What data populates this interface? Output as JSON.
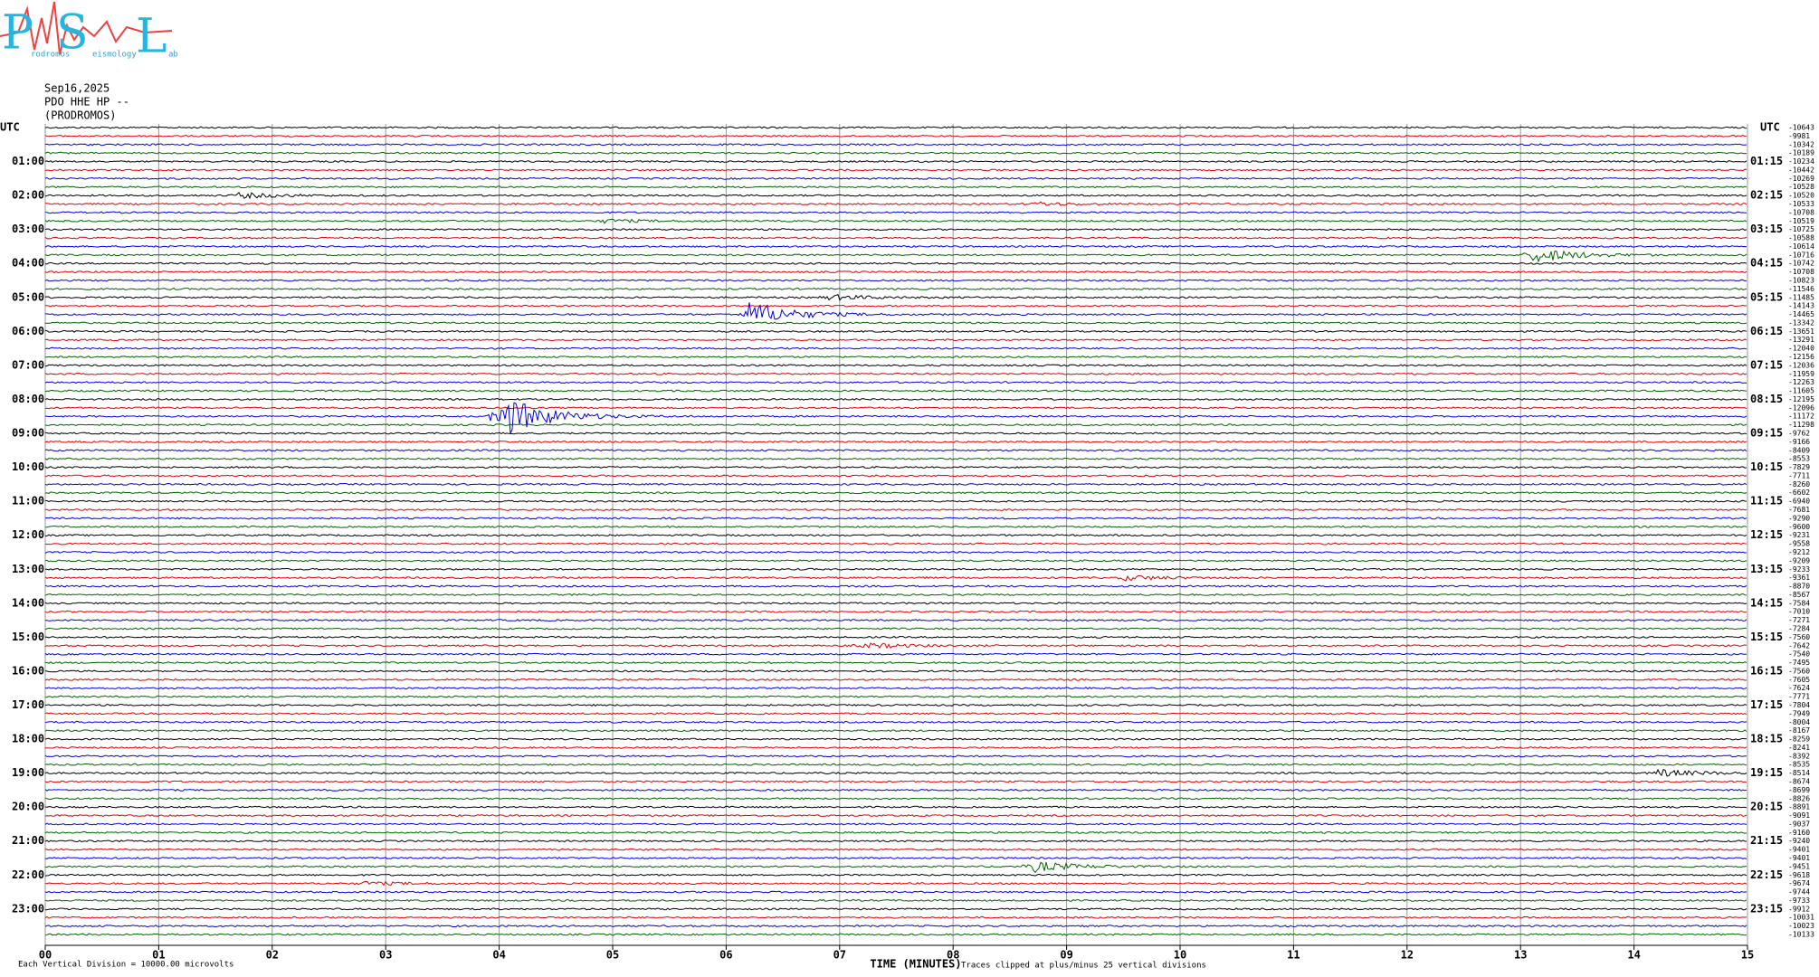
{
  "logo": {
    "letters": [
      "P",
      "S",
      "L"
    ],
    "words": [
      "rodromos",
      "eismology",
      "ab"
    ]
  },
  "header": {
    "date": "Sep16,2025",
    "channel": "PDO HHE HP --",
    "station": "(PRODROMOS)"
  },
  "left_labels": [
    "UTC",
    "01:00",
    "02:00",
    "03:00",
    "04:00",
    "05:00",
    "06:00",
    "07:00",
    "08:00",
    "09:00",
    "10:00",
    "11:00",
    "12:00",
    "13:00",
    "14:00",
    "15:00",
    "16:00",
    "17:00",
    "18:00",
    "19:00",
    "20:00",
    "21:00",
    "22:00",
    "23:00"
  ],
  "right_labels": [
    "UTC",
    "01:15",
    "02:15",
    "03:15",
    "04:15",
    "05:15",
    "06:15",
    "07:15",
    "08:15",
    "09:15",
    "10:15",
    "11:15",
    "12:15",
    "13:15",
    "14:15",
    "15:15",
    "16:15",
    "17:15",
    "18:15",
    "19:15",
    "20:15",
    "21:15",
    "22:15",
    "23:15"
  ],
  "offsets": [
    -10643,
    -9981,
    -10342,
    -10189,
    -10234,
    -10442,
    -10269,
    -10528,
    -10520,
    -10533,
    -10708,
    -10519,
    -10725,
    -10588,
    -10614,
    -10716,
    -10742,
    -10708,
    -10823,
    -11546,
    -11485,
    -14143,
    -14465,
    -13342,
    -13651,
    -13291,
    -12040,
    -12156,
    -12036,
    -11959,
    -12263,
    -11605,
    -12195,
    -12096,
    -11172,
    -11298,
    -9762,
    -9166,
    -8409,
    -8553,
    -7829,
    -7711,
    -8260,
    -6602,
    -6940,
    -7681,
    -9290,
    -9600,
    -9231,
    -9558,
    -9212,
    -9209,
    -9233,
    -9361,
    -8870,
    -8567,
    -7584,
    -7010,
    -7271,
    -7284,
    -7560,
    -7642,
    -7540,
    -7495,
    -7560,
    -7605,
    -7624,
    -7771,
    -7804,
    -7949,
    -8004,
    -8167,
    -8259,
    -8241,
    -8392,
    -8535,
    -8514,
    -8674,
    -8699,
    -8826,
    -8891,
    -9091,
    -9037,
    -9160,
    -9240,
    -9401,
    -9401,
    -9451,
    -9618,
    -9674,
    -9744,
    -9733,
    -9912,
    -10031,
    -10023,
    -10133
  ],
  "x_ticks": [
    "00",
    "01",
    "02",
    "03",
    "04",
    "05",
    "06",
    "07",
    "08",
    "09",
    "10",
    "11",
    "12",
    "13",
    "14",
    "15"
  ],
  "footer": {
    "scale": "Each Vertical Division = 10000.00 microvolts",
    "x_label": "TIME (MINUTES)",
    "clip_note": "Traces clipped at plus/minus 25 vertical divisions"
  }
}
